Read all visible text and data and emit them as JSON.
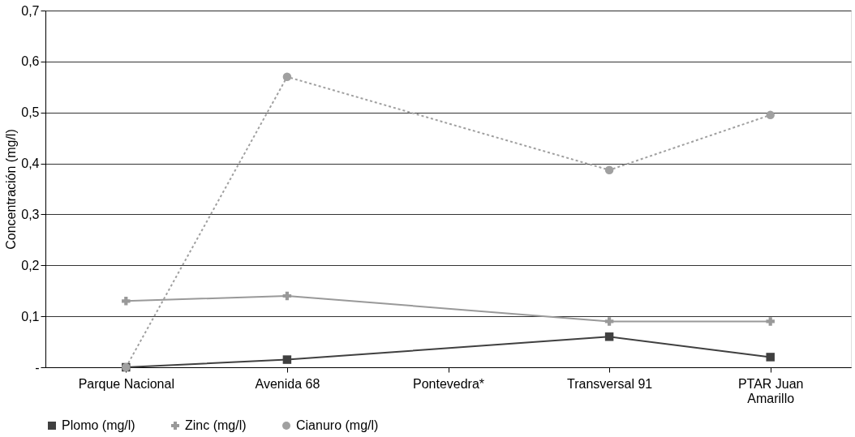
{
  "chart_data": {
    "type": "line",
    "ylabel": "Concentración (mg/l)",
    "categories": [
      "Parque Nacional",
      "Avenida 68",
      "Pontevedra*",
      "Transversal 91",
      "PTAR Juan Amarillo"
    ],
    "series": [
      {
        "name": "Plomo (mg/l)",
        "color": "#404040",
        "marker": "square",
        "line_style": "solid",
        "values": [
          0,
          0.015,
          null,
          0.06,
          0.02
        ]
      },
      {
        "name": "Zinc (mg/l)",
        "color": "#999999",
        "marker": "cross",
        "line_style": "solid",
        "values": [
          0.13,
          0.14,
          null,
          0.09,
          0.09
        ]
      },
      {
        "name": "Cianuro (mg/l)",
        "color": "#a0a0a0",
        "marker": "circle",
        "line_style": "dotted",
        "values": [
          0,
          0.57,
          null,
          0.387,
          0.495
        ]
      }
    ],
    "ylim": [
      0,
      0.7
    ],
    "yticks": [
      {
        "value": 0,
        "label": "-"
      },
      {
        "value": 0.1,
        "label": "0,1"
      },
      {
        "value": 0.2,
        "label": "0,2"
      },
      {
        "value": 0.3,
        "label": "0,3"
      },
      {
        "value": 0.4,
        "label": "0,4"
      },
      {
        "value": 0.5,
        "label": "0,5"
      },
      {
        "value": 0.6,
        "label": "0,6"
      },
      {
        "value": 0.7,
        "label": "0,7"
      }
    ],
    "grid": "y",
    "legend": "bottom"
  }
}
